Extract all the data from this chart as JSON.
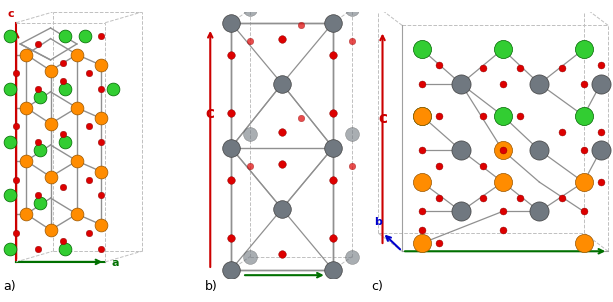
{
  "background": "#ffffff",
  "colors": {
    "orange": "#FF8C00",
    "green": "#32CD32",
    "red": "#DD0000",
    "gray": "#707880",
    "bond": "#909090",
    "dashed": "#C0C0C0",
    "axis_c": "#CC0000",
    "axis_a": "#007000",
    "axis_b": "#0000CC"
  },
  "labels": [
    "a)",
    "b)",
    "c)"
  ]
}
